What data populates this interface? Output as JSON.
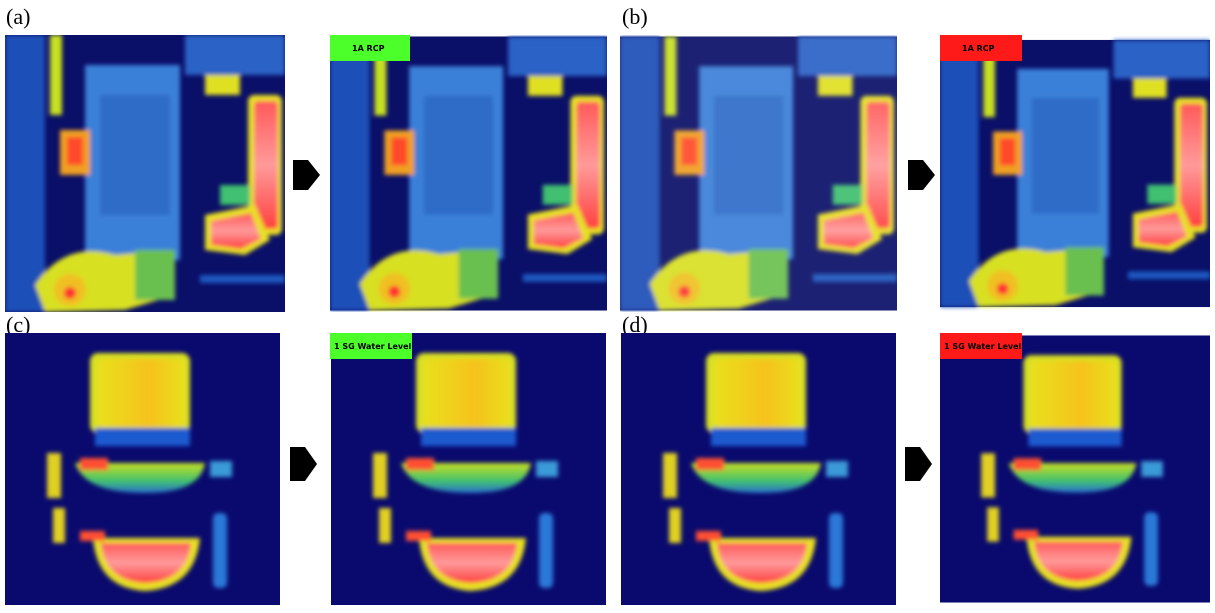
{
  "panels": [
    {
      "label": "(a)",
      "tag": "1A RCP",
      "tag_color": "#4cff2a"
    },
    {
      "label": "(b)",
      "tag": "1A RCP",
      "tag_color": "#ff1a1a"
    },
    {
      "label": "(c)",
      "tag": "1 SG Water Level",
      "tag_color": "#4cff2a"
    },
    {
      "label": "(d)",
      "tag": "1 SG Water Level",
      "tag_color": "#ff1a1a"
    }
  ]
}
